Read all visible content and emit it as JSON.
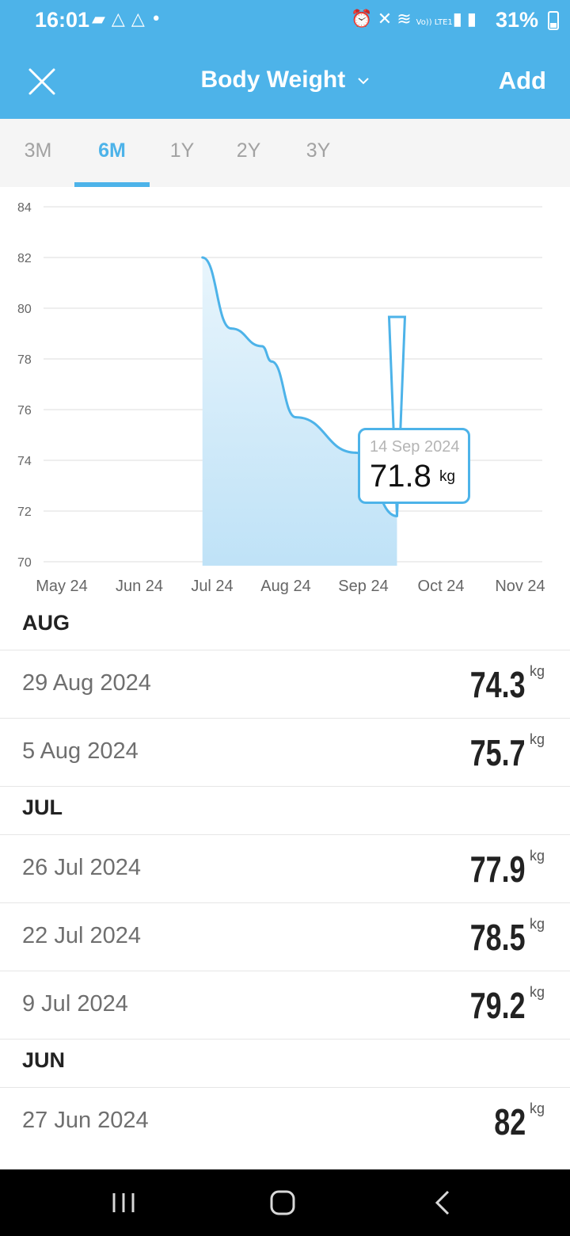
{
  "status_bar": {
    "time": "16:01",
    "battery": "31%",
    "left_icons": [
      "chat-icon",
      "drive-icon",
      "drive-icon",
      "dot-icon"
    ],
    "right_icons": [
      "alarm-icon",
      "mute-icon",
      "wifi-icon",
      "volte-icon",
      "signal-icon",
      "signal-icon"
    ],
    "volte_label": "Vo)) LTE1"
  },
  "header": {
    "title": "Body Weight",
    "add_label": "Add",
    "background": "#4db3e9"
  },
  "tabs": [
    {
      "label": "3M",
      "active": false
    },
    {
      "label": "6M",
      "active": true
    },
    {
      "label": "1Y",
      "active": false
    },
    {
      "label": "2Y",
      "active": false
    },
    {
      "label": "3Y",
      "active": false
    }
  ],
  "chart_data": {
    "type": "area",
    "x_tick_labels": [
      "May 24",
      "Jun 24",
      "Jul 24",
      "Aug 24",
      "Sep 24",
      "Oct 24",
      "Nov 24"
    ],
    "y_ticks": [
      70,
      72,
      74,
      76,
      78,
      80,
      82,
      84
    ],
    "ylim": [
      70,
      84
    ],
    "unit": "kg",
    "series": [
      {
        "points": [
          {
            "date": "2024-06-27",
            "value": 82
          },
          {
            "date": "2024-07-09",
            "value": 79.2
          },
          {
            "date": "2024-07-22",
            "value": 78.5
          },
          {
            "date": "2024-07-26",
            "value": 77.9
          },
          {
            "date": "2024-08-05",
            "value": 75.7
          },
          {
            "date": "2024-08-29",
            "value": 74.3
          },
          {
            "date": "2024-09-14",
            "value": 71.8
          }
        ]
      }
    ],
    "line_color": "#4db3e9",
    "fill_color": "#bfe2f7",
    "grid": true,
    "selected": {
      "date": "14 Sep 2024",
      "value": "71.8",
      "unit": "kg"
    }
  },
  "entries": [
    {
      "month": "AUG",
      "items": [
        {
          "date": "29 Aug 2024",
          "weight": "74.3",
          "unit": "kg"
        },
        {
          "date": "5 Aug 2024",
          "weight": "75.7",
          "unit": "kg"
        }
      ]
    },
    {
      "month": "JUL",
      "items": [
        {
          "date": "26 Jul 2024",
          "weight": "77.9",
          "unit": "kg"
        },
        {
          "date": "22 Jul 2024",
          "weight": "78.5",
          "unit": "kg"
        },
        {
          "date": "9 Jul 2024",
          "weight": "79.2",
          "unit": "kg"
        }
      ]
    },
    {
      "month": "JUN",
      "items": [
        {
          "date": "27 Jun 2024",
          "weight": "82",
          "unit": "kg"
        }
      ]
    }
  ],
  "nav": [
    "recents-icon",
    "home-icon",
    "back-icon"
  ]
}
